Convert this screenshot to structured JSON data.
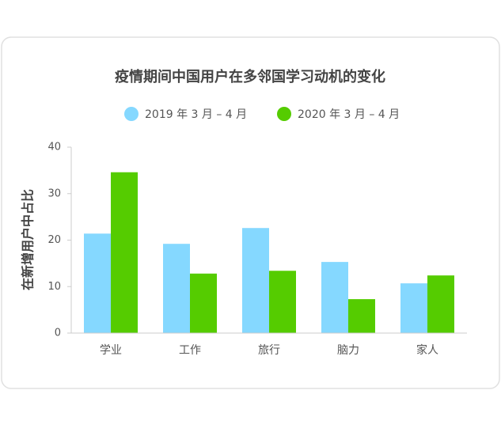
{
  "chart_data": {
    "type": "bar",
    "title": "疫情期间中国用户在多邻国学习动机的变化",
    "y_label": "在新增用户中占比",
    "categories": [
      "学业",
      "工作",
      "旅行",
      "脑力",
      "家人"
    ],
    "series": [
      {
        "name": "2019 年 3 月 – 4 月",
        "color": "#85d8ff",
        "values": [
          21.4,
          19.2,
          22.6,
          15.3,
          10.7
        ]
      },
      {
        "name": "2020 年 3 月 – 4 月",
        "color": "#55cc00",
        "values": [
          34.6,
          12.8,
          13.4,
          7.3,
          12.4
        ]
      }
    ],
    "ylim": [
      0,
      40
    ],
    "yticks": [
      0,
      10,
      20,
      30,
      40
    ],
    "grid": false
  }
}
